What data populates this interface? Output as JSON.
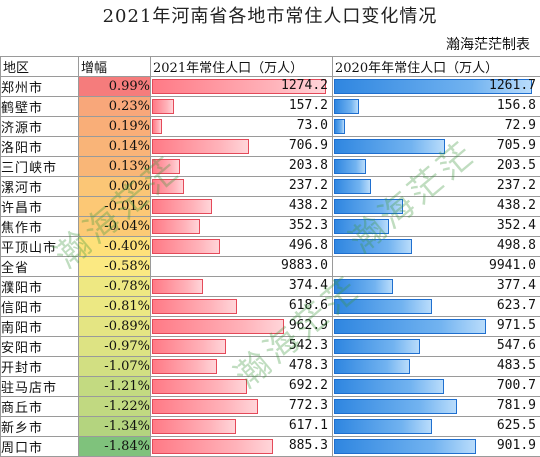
{
  "title": "2021年河南省各地市常住人口变化情况",
  "source_label": "瀚海茫茫制表",
  "headers": {
    "region": "地区",
    "change": "增幅",
    "pop2021": "2021年常住人口（万人）",
    "pop2020": "2020年年常住人口（万人）"
  },
  "scale_max": 9941.0,
  "watermark_text": "瀚海茫茫",
  "rows": [
    {
      "region": "郑州市",
      "change": "0.99%",
      "pop2021": "1274.2",
      "pop2020": "1261.7",
      "heat": "#f57c7c"
    },
    {
      "region": "鹤壁市",
      "change": "0.23%",
      "pop2021": "157.2",
      "pop2020": "156.8",
      "heat": "#f8a77a"
    },
    {
      "region": "济源市",
      "change": "0.19%",
      "pop2021": "73.0",
      "pop2020": "72.9",
      "heat": "#f9ae78"
    },
    {
      "region": "洛阳市",
      "change": "0.14%",
      "pop2021": "706.9",
      "pop2020": "705.9",
      "heat": "#f9b478"
    },
    {
      "region": "三门峡市",
      "change": "0.13%",
      "pop2021": "203.8",
      "pop2020": "203.5",
      "heat": "#f9b677"
    },
    {
      "region": "漯河市",
      "change": "0.00%",
      "pop2021": "237.2",
      "pop2020": "237.2",
      "heat": "#fbc676"
    },
    {
      "region": "许昌市",
      "change": "-0.01%",
      "pop2021": "438.2",
      "pop2020": "438.2",
      "heat": "#fcc875"
    },
    {
      "region": "焦作市",
      "change": "-0.04%",
      "pop2021": "352.3",
      "pop2020": "352.4",
      "heat": "#fcca75"
    },
    {
      "region": "平顶山市",
      "change": "-0.40%",
      "pop2021": "496.8",
      "pop2020": "498.8",
      "heat": "#fee17a"
    },
    {
      "region": "全省",
      "change": "-0.58%",
      "pop2021": "9883.0",
      "pop2020": "9941.0",
      "heat": "#fbe982"
    },
    {
      "region": "濮阳市",
      "change": "-0.78%",
      "pop2021": "374.4",
      "pop2020": "377.4",
      "heat": "#eee882"
    },
    {
      "region": "信阳市",
      "change": "-0.81%",
      "pop2021": "618.6",
      "pop2020": "623.7",
      "heat": "#ece883"
    },
    {
      "region": "南阳市",
      "change": "-0.89%",
      "pop2021": "962.9",
      "pop2020": "971.5",
      "heat": "#e4e583"
    },
    {
      "region": "安阳市",
      "change": "-0.97%",
      "pop2021": "542.3",
      "pop2020": "547.6",
      "heat": "#dde383"
    },
    {
      "region": "开封市",
      "change": "-1.07%",
      "pop2021": "478.3",
      "pop2020": "483.5",
      "heat": "#d2df82"
    },
    {
      "region": "驻马店市",
      "change": "-1.21%",
      "pop2021": "692.2",
      "pop2020": "700.7",
      "heat": "#c3da81"
    },
    {
      "region": "商丘市",
      "change": "-1.22%",
      "pop2021": "772.3",
      "pop2020": "781.9",
      "heat": "#c1d981"
    },
    {
      "region": "新乡市",
      "change": "-1.34%",
      "pop2021": "617.1",
      "pop2020": "625.5",
      "heat": "#b4d47f"
    },
    {
      "region": "周口市",
      "change": "-1.84%",
      "pop2021": "885.3",
      "pop2020": "901.9",
      "heat": "#7fc27c"
    }
  ]
}
